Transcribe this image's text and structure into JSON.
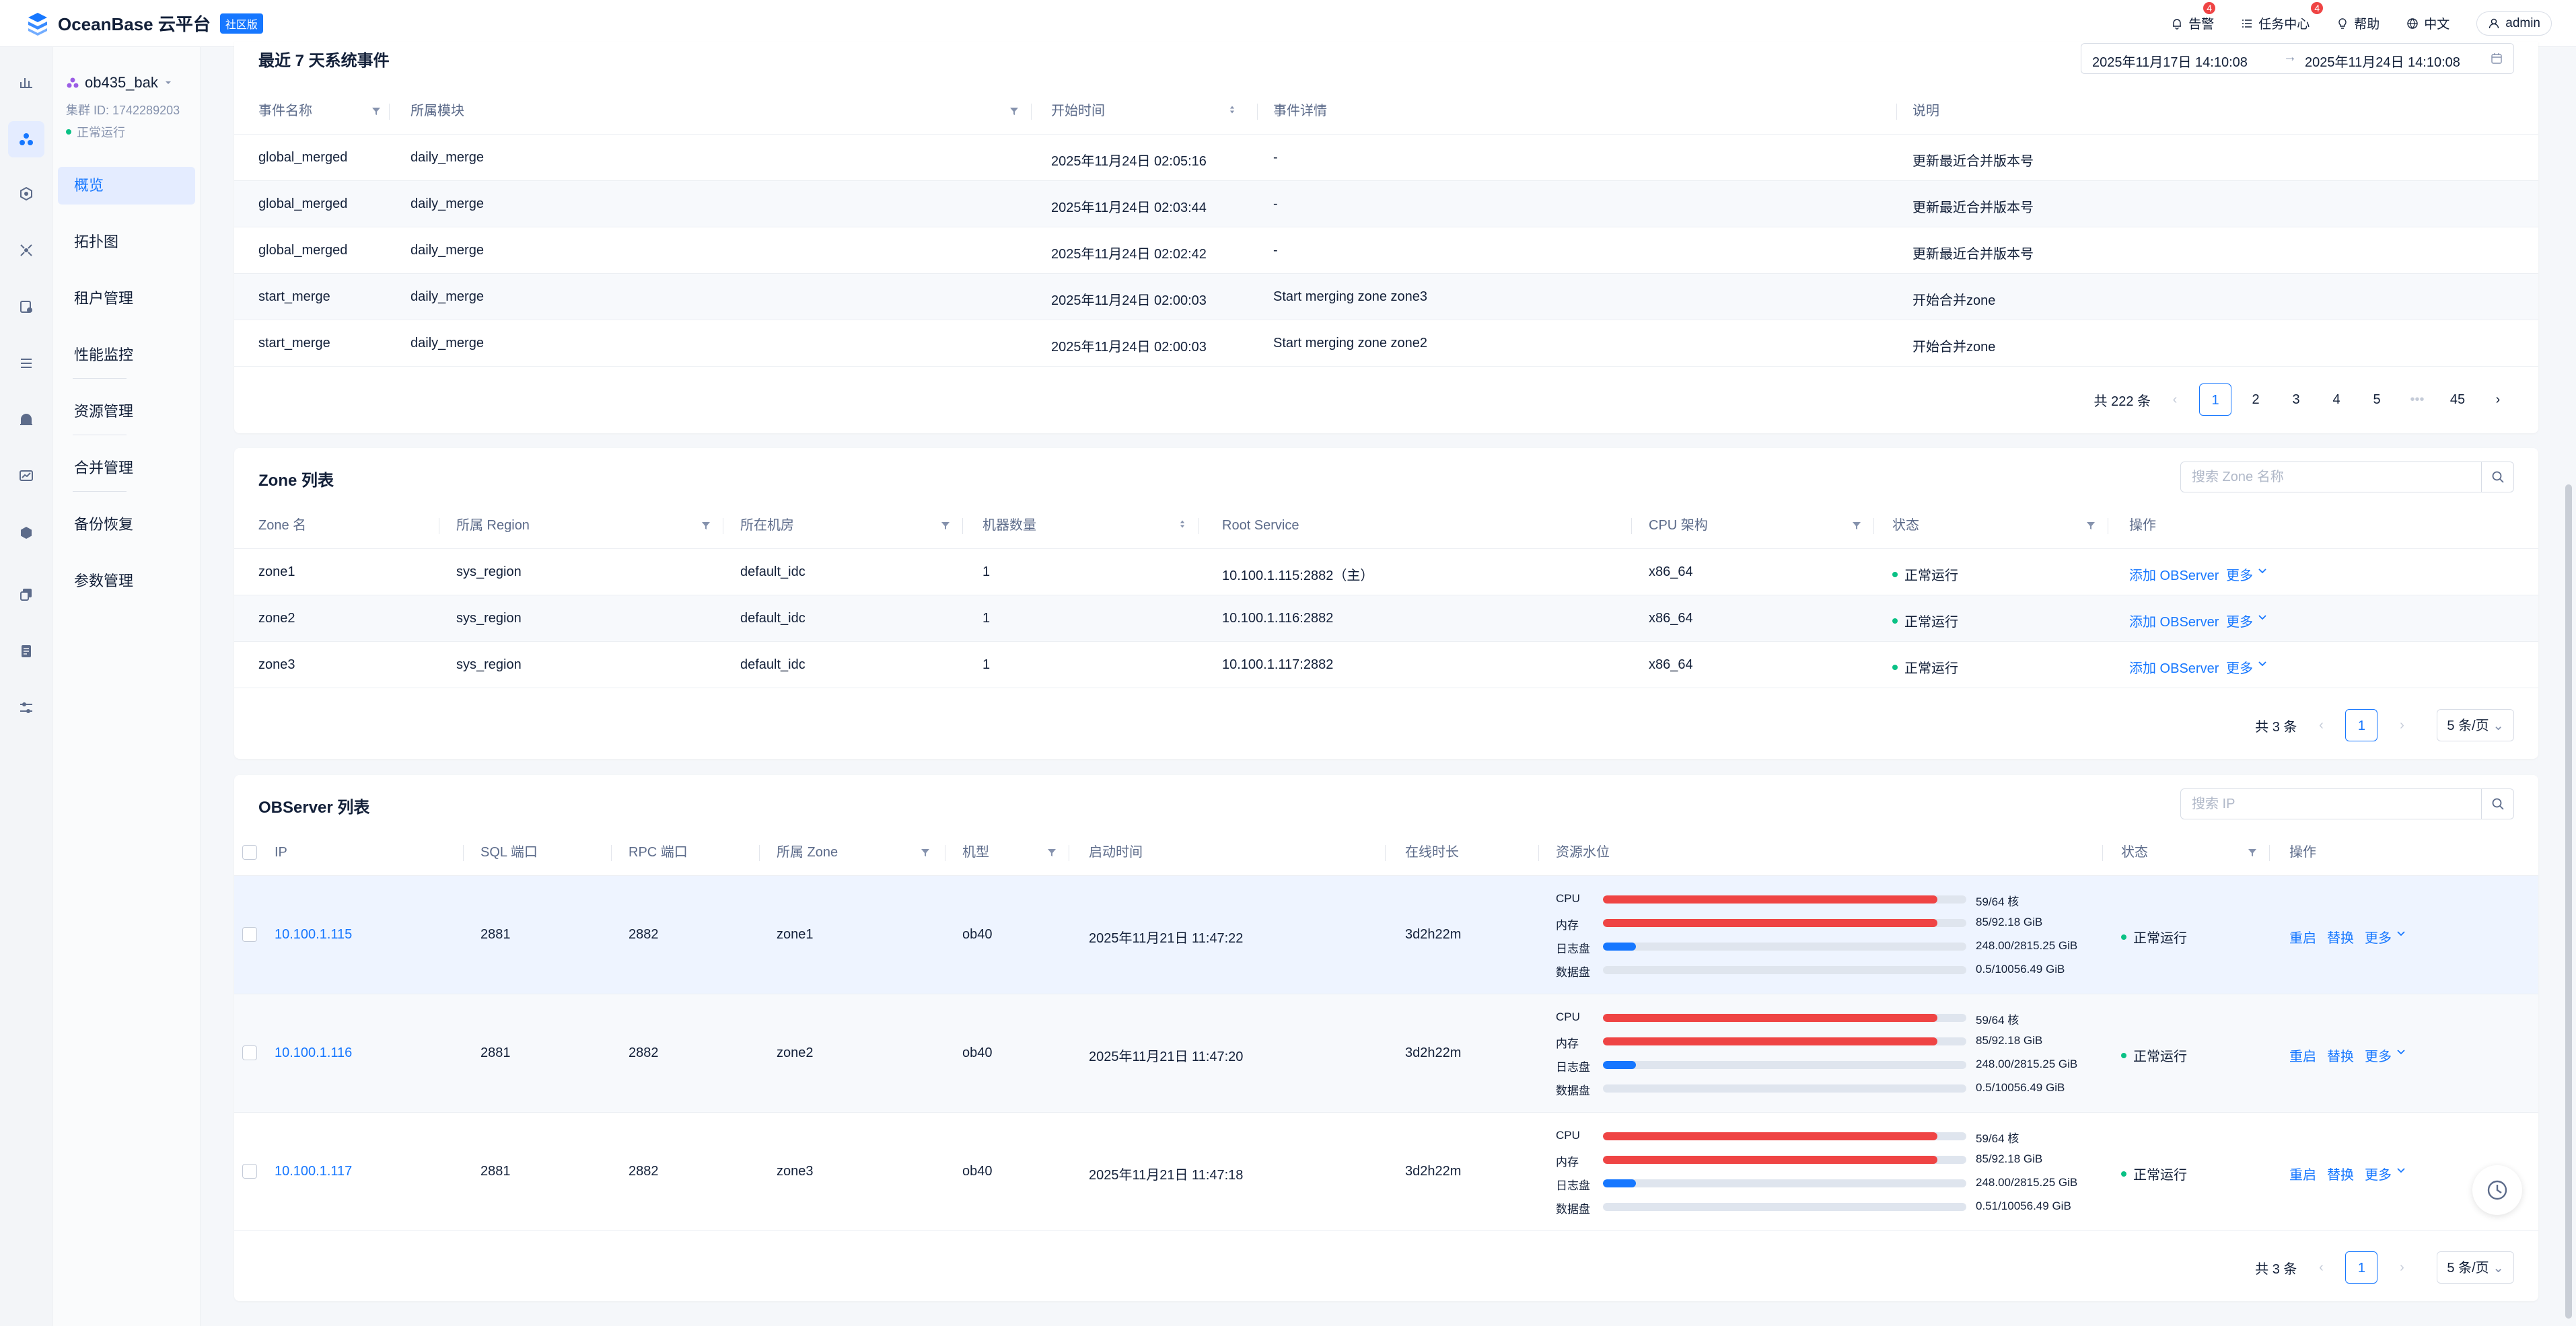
{
  "header": {
    "logo": "OceanBase 云平台",
    "edition": "社区版",
    "alerts": {
      "label": "告警",
      "count": "4"
    },
    "tasks": {
      "label": "任务中心",
      "count": "4"
    },
    "help": "帮助",
    "lang": "中文",
    "user": "admin"
  },
  "sidebar": {
    "cluster_name": "ob435_bak",
    "cluster_id": "集群 ID: 1742289203",
    "cluster_status": "正常运行",
    "items": [
      {
        "label": "概览"
      },
      {
        "label": "拓扑图"
      },
      {
        "label": "租户管理"
      },
      {
        "label": "性能监控"
      },
      {
        "label": "资源管理"
      },
      {
        "label": "合并管理"
      },
      {
        "label": "备份恢复"
      },
      {
        "label": "参数管理"
      }
    ]
  },
  "events": {
    "title": "最近 7 天系统事件",
    "date_start": "2025年11月17日 14:10:08",
    "date_end": "2025年11月24日 14:10:08",
    "columns": [
      "事件名称",
      "所属模块",
      "开始时间",
      "事件详情",
      "说明"
    ],
    "rows": [
      {
        "name": "global_merged",
        "module": "daily_merge",
        "time": "2025年11月24日 02:05:16",
        "detail": "-",
        "desc": "更新最近合并版本号"
      },
      {
        "name": "global_merged",
        "module": "daily_merge",
        "time": "2025年11月24日 02:03:44",
        "detail": "-",
        "desc": "更新最近合并版本号"
      },
      {
        "name": "global_merged",
        "module": "daily_merge",
        "time": "2025年11月24日 02:02:42",
        "detail": "-",
        "desc": "更新最近合并版本号"
      },
      {
        "name": "start_merge",
        "module": "daily_merge",
        "time": "2025年11月24日 02:00:03",
        "detail": "Start merging zone zone3",
        "desc": "开始合并zone"
      },
      {
        "name": "start_merge",
        "module": "daily_merge",
        "time": "2025年11月24日 02:00:03",
        "detail": "Start merging zone zone2",
        "desc": "开始合并zone"
      }
    ],
    "total": "共 222 条",
    "pages": [
      "1",
      "2",
      "3",
      "4",
      "5",
      "•••",
      "45"
    ]
  },
  "zones": {
    "title": "Zone 列表",
    "search_placeholder": "搜索 Zone 名称",
    "columns": [
      "Zone 名",
      "所属 Region",
      "所在机房",
      "机器数量",
      "Root Service",
      "CPU 架构",
      "状态",
      "操作"
    ],
    "rows": [
      {
        "zone": "zone1",
        "region": "sys_region",
        "idc": "default_idc",
        "count": "1",
        "rs": "10.100.1.115:2882（主）",
        "arch": "x86_64",
        "status": "正常运行",
        "add": "添加 OBServer",
        "more": "更多"
      },
      {
        "zone": "zone2",
        "region": "sys_region",
        "idc": "default_idc",
        "count": "1",
        "rs": "10.100.1.116:2882",
        "arch": "x86_64",
        "status": "正常运行",
        "add": "添加 OBServer",
        "more": "更多"
      },
      {
        "zone": "zone3",
        "region": "sys_region",
        "idc": "default_idc",
        "count": "1",
        "rs": "10.100.1.117:2882",
        "arch": "x86_64",
        "status": "正常运行",
        "add": "添加 OBServer",
        "more": "更多"
      }
    ],
    "total": "共 3 条",
    "page": "1",
    "page_size": "5 条/页"
  },
  "observers": {
    "title": "OBServer 列表",
    "search_placeholder": "搜索 IP",
    "columns": [
      "IP",
      "SQL 端口",
      "RPC 端口",
      "所属 Zone",
      "机型",
      "启动时间",
      "在线时长",
      "资源水位",
      "状态",
      "操作"
    ],
    "resource_labels": [
      "CPU",
      "内存",
      "日志盘",
      "数据盘"
    ],
    "rows": [
      {
        "ip": "10.100.1.115",
        "sql": "2881",
        "rpc": "2882",
        "zone": "zone1",
        "type": "ob40",
        "start": "2025年11月21日 11:47:22",
        "uptime": "3d2h22m",
        "status": "正常运行",
        "cpu": "59/64 核",
        "mem": "85/92.18 GiB",
        "log": "248.00/2815.25 GiB",
        "data": "0.5/10056.49 GiB",
        "cpu_pct": 0.92,
        "mem_pct": 0.92,
        "log_pct": 0.09,
        "data_pct": 0.0
      },
      {
        "ip": "10.100.1.116",
        "sql": "2881",
        "rpc": "2882",
        "zone": "zone2",
        "type": "ob40",
        "start": "2025年11月21日 11:47:20",
        "uptime": "3d2h22m",
        "status": "正常运行",
        "cpu": "59/64 核",
        "mem": "85/92.18 GiB",
        "log": "248.00/2815.25 GiB",
        "data": "0.5/10056.49 GiB",
        "cpu_pct": 0.92,
        "mem_pct": 0.92,
        "log_pct": 0.09,
        "data_pct": 0.0
      },
      {
        "ip": "10.100.1.117",
        "sql": "2881",
        "rpc": "2882",
        "zone": "zone3",
        "type": "ob40",
        "start": "2025年11月21日 11:47:18",
        "uptime": "3d2h22m",
        "status": "正常运行",
        "cpu": "59/64 核",
        "mem": "85/92.18 GiB",
        "log": "248.00/2815.25 GiB",
        "data": "0.51/10056.49 GiB",
        "cpu_pct": 0.92,
        "mem_pct": 0.92,
        "log_pct": 0.09,
        "data_pct": 0.0
      }
    ],
    "actions": {
      "restart": "重启",
      "replace": "替换",
      "more": "更多"
    },
    "total": "共 3 条",
    "page": "1",
    "page_size": "5 条/页"
  },
  "colors": {
    "accent": "#1677ff",
    "danger": "#ef4444",
    "success": "#0ac185"
  }
}
